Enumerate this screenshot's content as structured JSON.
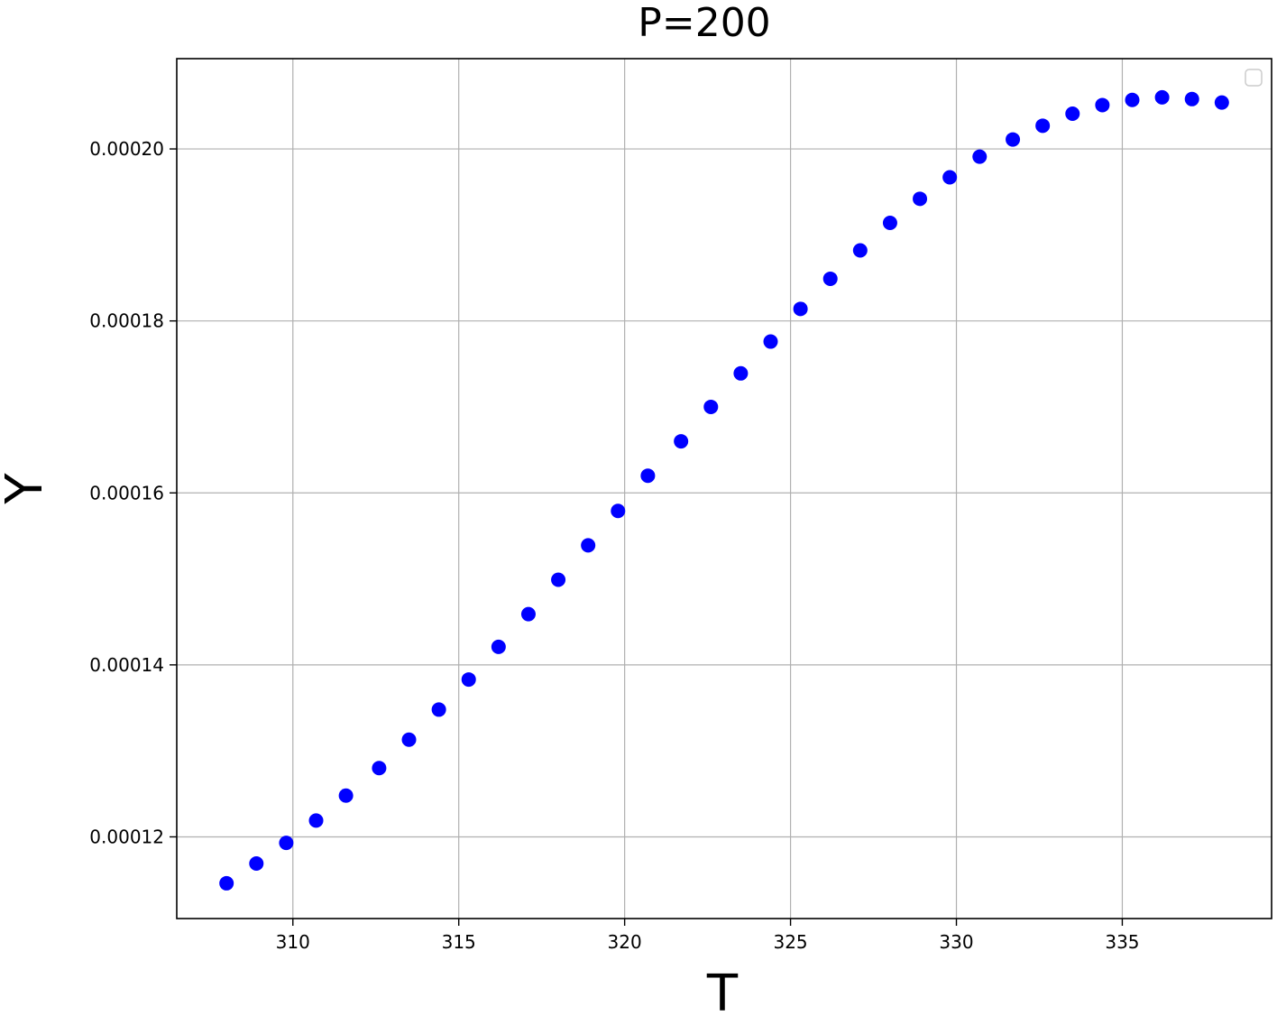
{
  "chart_data": {
    "type": "scatter",
    "title": "P=200",
    "xlabel": "T",
    "ylabel": "Y",
    "xlim": [
      306.5,
      339.5
    ],
    "ylim": [
      0.0001105,
      0.0002105
    ],
    "xticks": [
      310,
      315,
      320,
      325,
      330,
      335
    ],
    "yticks": [
      0.00012,
      0.00014,
      0.00016,
      0.00018,
      0.0002
    ],
    "xtick_labels": [
      "310",
      "315",
      "320",
      "325",
      "330",
      "335"
    ],
    "ytick_labels": [
      "0.00012",
      "0.00014",
      "0.00016",
      "0.00018",
      "0.00020"
    ],
    "grid": true,
    "legend": "top-right (empty)",
    "marker_color": "#0000ff",
    "series": [
      {
        "x": [
          308.0,
          308.9,
          309.8,
          310.7,
          311.6,
          312.6,
          313.5,
          314.4,
          315.3,
          316.2,
          317.1,
          318.0,
          318.9,
          319.8,
          320.7,
          321.7,
          322.6,
          323.5,
          324.4,
          325.3,
          326.2,
          327.1,
          328.0,
          328.9,
          329.8,
          330.7,
          331.7,
          332.6,
          333.5,
          334.4,
          335.3,
          336.2,
          337.1,
          338.0
        ],
        "y": [
          0.0001146,
          0.0001169,
          0.0001193,
          0.0001219,
          0.0001248,
          0.000128,
          0.0001313,
          0.0001348,
          0.0001383,
          0.0001421,
          0.0001459,
          0.0001499,
          0.0001539,
          0.0001579,
          0.000162,
          0.000166,
          0.00017,
          0.0001739,
          0.0001776,
          0.0001814,
          0.0001849,
          0.0001882,
          0.0001914,
          0.0001942,
          0.0001967,
          0.0001991,
          0.0002011,
          0.0002027,
          0.0002041,
          0.0002051,
          0.0002057,
          0.000206,
          0.0002058,
          0.0002054
        ]
      }
    ]
  }
}
